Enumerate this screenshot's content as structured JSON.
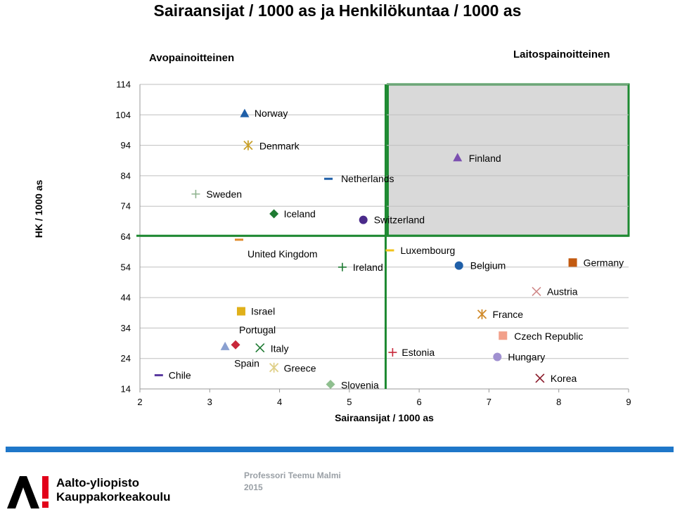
{
  "title": "Sairaansijat / 1000 as ja Henkilökuntaa / 1000 as",
  "footer": {
    "author": "Professori Teemu Malmi",
    "year": "2015",
    "logo_line1": "Aalto-yliopisto",
    "logo_line2": "Kauppakorkeakoulu"
  },
  "colors": {
    "threshold": "#1e8a32",
    "highlight_fill": "#d9d9d9",
    "gridline": "#bfbfbf",
    "footer_bar": "#1f77c9",
    "logo_red": "#e2001a"
  },
  "chart_data": {
    "type": "scatter",
    "title": "Sairaansijat / 1000 as ja Henkilökuntaa / 1000 as",
    "xlabel": "Sairaansijat / 1000 as",
    "ylabel": "HK / 1000 as",
    "xlim": [
      2,
      9
    ],
    "ylim": [
      14,
      114
    ],
    "xticks": [
      2,
      3,
      4,
      5,
      6,
      7,
      8,
      9
    ],
    "yticks": [
      14,
      24,
      34,
      44,
      54,
      64,
      74,
      84,
      94,
      104,
      114
    ],
    "grid": "horizontal",
    "thresholds": {
      "x": 5.52,
      "y": 64.3
    },
    "regions": [
      {
        "label": "Avopainoitteinen",
        "position": "top-left"
      },
      {
        "label": "Laitospainoitteinen",
        "position": "top-right"
      }
    ],
    "highlight_region": {
      "x": [
        5.55,
        9
      ],
      "y": [
        64.3,
        114
      ]
    },
    "points": [
      {
        "name": "Norway",
        "x": 3.5,
        "y": 104.5,
        "marker": "triangle",
        "color": "#1f5fa8"
      },
      {
        "name": "Denmark",
        "x": 3.55,
        "y": 94,
        "marker": "asterisk",
        "color": "#c8a02a"
      },
      {
        "name": "Finland",
        "x": 6.55,
        "y": 90,
        "marker": "triangle",
        "color": "#7b4fb0"
      },
      {
        "name": "Netherlands",
        "x": 4.7,
        "y": 83,
        "marker": "dash",
        "color": "#1f5fa8"
      },
      {
        "name": "Sweden",
        "x": 2.8,
        "y": 78,
        "marker": "plus",
        "color": "#8fb38f"
      },
      {
        "name": "Iceland",
        "x": 3.92,
        "y": 71.5,
        "marker": "diamond",
        "color": "#1e7a32"
      },
      {
        "name": "Switzerland",
        "x": 5.2,
        "y": 69.5,
        "marker": "circle",
        "color": "#4a2a8a"
      },
      {
        "name": "United Kingdom",
        "x": 3.42,
        "y": 63,
        "marker": "dash",
        "color": "#e08a2a"
      },
      {
        "name": "Luxembourg",
        "x": 5.58,
        "y": 59.5,
        "marker": "dash",
        "color": "#f2c21a"
      },
      {
        "name": "Ireland",
        "x": 4.9,
        "y": 54,
        "marker": "plus",
        "color": "#1e7a32"
      },
      {
        "name": "Belgium",
        "x": 6.57,
        "y": 54.5,
        "marker": "circle",
        "color": "#1f5fa8"
      },
      {
        "name": "Germany",
        "x": 8.2,
        "y": 55.5,
        "marker": "square",
        "color": "#c25a10"
      },
      {
        "name": "Austria",
        "x": 7.68,
        "y": 46,
        "marker": "x",
        "color": "#d08a8a"
      },
      {
        "name": "Israel",
        "x": 3.45,
        "y": 39.5,
        "marker": "square",
        "color": "#e0b01a"
      },
      {
        "name": "France",
        "x": 6.9,
        "y": 38.5,
        "marker": "asterisk",
        "color": "#d08a2a"
      },
      {
        "name": "Czech Republic",
        "x": 7.2,
        "y": 31.5,
        "marker": "square",
        "color": "#f2a08a"
      },
      {
        "name": "Portugal",
        "x": 3.37,
        "y": 28.5,
        "marker": "diamond",
        "color": "#c8283a"
      },
      {
        "name": "Spain",
        "x": 3.22,
        "y": 28,
        "marker": "triangle",
        "color": "#8aa0d0"
      },
      {
        "name": "Italy",
        "x": 3.72,
        "y": 27.5,
        "marker": "x",
        "color": "#1e7a32"
      },
      {
        "name": "Estonia",
        "x": 5.62,
        "y": 26,
        "marker": "plus",
        "color": "#c8283a"
      },
      {
        "name": "Hungary",
        "x": 7.12,
        "y": 24.5,
        "marker": "circle",
        "color": "#a090d0"
      },
      {
        "name": "Greece",
        "x": 3.92,
        "y": 21,
        "marker": "asterisk",
        "color": "#e0d08a"
      },
      {
        "name": "Chile",
        "x": 2.27,
        "y": 18.5,
        "marker": "dash",
        "color": "#5a3aa0"
      },
      {
        "name": "Korea",
        "x": 7.73,
        "y": 17.5,
        "marker": "x",
        "color": "#8a1a2a"
      },
      {
        "name": "Slovenia",
        "x": 4.73,
        "y": 15.5,
        "marker": "diamond",
        "color": "#8fbf8f"
      }
    ]
  }
}
